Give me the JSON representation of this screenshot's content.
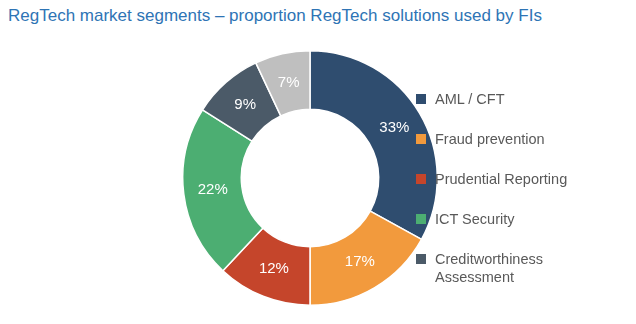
{
  "chart_data": {
    "type": "doughnut",
    "title": "RegTech market segments – proportion RegTech solutions used by FIs",
    "categories": [
      "AML / CFT",
      "Fraud prevention",
      "Prudential Reporting",
      "ICT Security",
      "Creditworthiness Assessment",
      null
    ],
    "values": [
      33,
      17,
      12,
      22,
      9,
      7
    ],
    "value_labels": [
      "33%",
      "17%",
      "12%",
      "22%",
      "9%",
      "7%"
    ],
    "colors": [
      "#2f4d6f",
      "#f29a3d",
      "#c5452b",
      "#4cae72",
      "#4b5a68",
      "#bfbfbf"
    ],
    "data_labels": true,
    "legend": "right"
  }
}
